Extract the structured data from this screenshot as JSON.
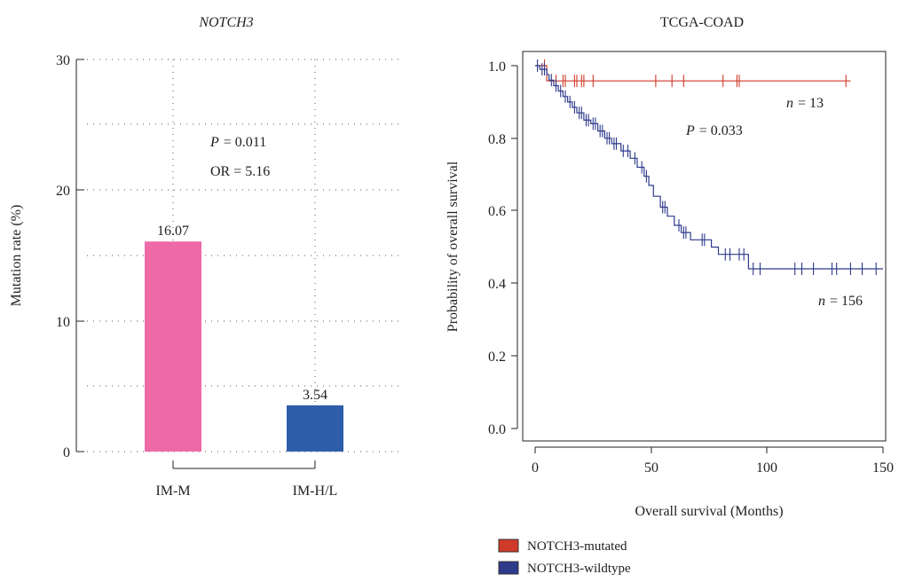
{
  "chart_data": [
    {
      "type": "bar",
      "title": "NOTCH3",
      "xlabel": "",
      "ylabel": "Mutation rate (%)",
      "ylim": [
        0,
        30
      ],
      "yticks": [
        0,
        10,
        20,
        30
      ],
      "grid": true,
      "categories": [
        "IM-M",
        "IM-H/L"
      ],
      "values": [
        16.07,
        3.54
      ],
      "value_labels": [
        "16.07",
        "3.54"
      ],
      "colors": [
        "#EE6AA7",
        "#2E5EAA"
      ],
      "annotations": {
        "p_label": "P",
        "p_value": "= 0.011",
        "or": "OR = 5.16"
      }
    },
    {
      "type": "line",
      "title": "TCGA-COAD",
      "xlabel": "Overall survival (Months)",
      "ylabel": "Probability of overall survival",
      "xlim": [
        0,
        150
      ],
      "ylim": [
        0,
        1
      ],
      "xticks": [
        0,
        50,
        100,
        150
      ],
      "yticks": [
        "0.0",
        "0.2",
        "0.4",
        "0.6",
        "0.8",
        "1.0"
      ],
      "legend_position": "bottom",
      "series": [
        {
          "name": "NOTCH3-mutated",
          "color": "#D03A2A",
          "n_label": "n",
          "n_value": "= 13",
          "steps": [
            [
              0,
              1.0
            ],
            [
              5,
              1.0
            ],
            [
              5,
              0.958
            ],
            [
              136,
              0.958
            ]
          ],
          "censor": [
            4,
            9,
            12,
            13,
            17,
            18,
            20,
            21,
            25,
            52,
            59,
            64,
            81,
            87,
            88,
            134
          ]
        },
        {
          "name": "NOTCH3-wildtype",
          "color": "#2E3A8C",
          "n_label": "n",
          "n_value": "= 156",
          "steps": [
            [
              0,
              1.0
            ],
            [
              2,
              1.0
            ],
            [
              2,
              0.99
            ],
            [
              5,
              0.99
            ],
            [
              5,
              0.975
            ],
            [
              6,
              0.975
            ],
            [
              6,
              0.96
            ],
            [
              8,
              0.96
            ],
            [
              8,
              0.945
            ],
            [
              10,
              0.945
            ],
            [
              10,
              0.93
            ],
            [
              12,
              0.93
            ],
            [
              12,
              0.915
            ],
            [
              14,
              0.915
            ],
            [
              14,
              0.9
            ],
            [
              16,
              0.9
            ],
            [
              16,
              0.885
            ],
            [
              18,
              0.885
            ],
            [
              18,
              0.87
            ],
            [
              21,
              0.87
            ],
            [
              21,
              0.85
            ],
            [
              24,
              0.85
            ],
            [
              24,
              0.84
            ],
            [
              27,
              0.84
            ],
            [
              27,
              0.82
            ],
            [
              30,
              0.82
            ],
            [
              30,
              0.8
            ],
            [
              33,
              0.8
            ],
            [
              33,
              0.785
            ],
            [
              37,
              0.785
            ],
            [
              37,
              0.765
            ],
            [
              41,
              0.765
            ],
            [
              41,
              0.745
            ],
            [
              44,
              0.745
            ],
            [
              44,
              0.72
            ],
            [
              47,
              0.72
            ],
            [
              47,
              0.695
            ],
            [
              49,
              0.695
            ],
            [
              49,
              0.67
            ],
            [
              51,
              0.67
            ],
            [
              51,
              0.64
            ],
            [
              54,
              0.64
            ],
            [
              54,
              0.61
            ],
            [
              57,
              0.61
            ],
            [
              57,
              0.585
            ],
            [
              60,
              0.585
            ],
            [
              60,
              0.56
            ],
            [
              63,
              0.56
            ],
            [
              63,
              0.54
            ],
            [
              67,
              0.54
            ],
            [
              67,
              0.52
            ],
            [
              76,
              0.52
            ],
            [
              76,
              0.5
            ],
            [
              79,
              0.5
            ],
            [
              79,
              0.48
            ],
            [
              92,
              0.48
            ],
            [
              92,
              0.44
            ],
            [
              150,
              0.44
            ]
          ],
          "censor": [
            1,
            3,
            4,
            7,
            9,
            11,
            13,
            15,
            17,
            19,
            20,
            22,
            23,
            25,
            26,
            28,
            29,
            31,
            32,
            34,
            35,
            38,
            40,
            43,
            46,
            48,
            55,
            56,
            62,
            64,
            65,
            72,
            73,
            82,
            84,
            88,
            90,
            94,
            97,
            112,
            115,
            120,
            128,
            130,
            136,
            141,
            147
          ]
        }
      ],
      "annotations": {
        "p_label": "P",
        "p_value": "= 0.033"
      }
    }
  ]
}
